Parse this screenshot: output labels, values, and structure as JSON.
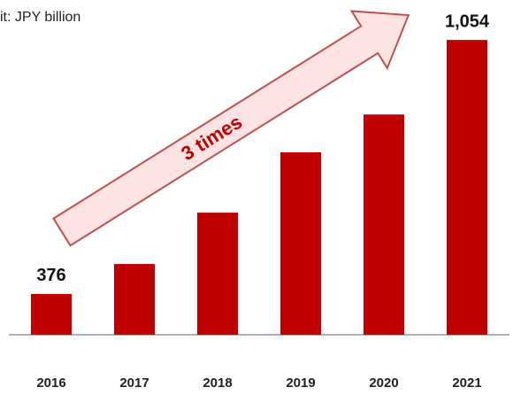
{
  "chart_data": {
    "type": "bar",
    "title": "it: JPY billion",
    "categories": [
      "2016",
      "2017",
      "2018",
      "2019",
      "2020",
      "2021"
    ],
    "values": [
      376,
      456,
      593,
      754,
      855,
      1054
    ],
    "value_labels": [
      "376",
      null,
      null,
      null,
      null,
      "1,054"
    ],
    "color": "#c00000",
    "ylim": [
      267,
      1137
    ],
    "annotation": "3 times"
  }
}
